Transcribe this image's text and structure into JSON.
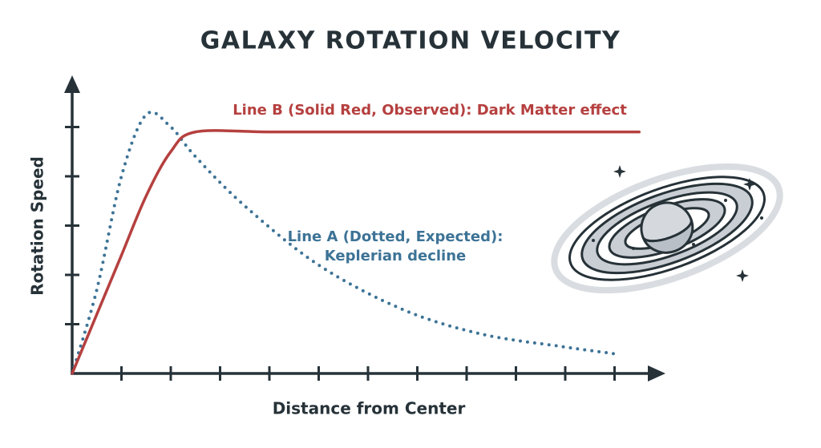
{
  "chart_data": {
    "type": "line",
    "title": "GALAXY ROTATION VELOCITY",
    "x_label": "Distance from Center",
    "y_label": "Rotation Speed",
    "xlim": [
      0,
      12
    ],
    "ylim": [
      0,
      6
    ],
    "xticks": [
      1,
      2,
      3,
      4,
      5,
      6,
      7,
      8,
      9,
      10,
      11
    ],
    "yticks": [
      1,
      2,
      3,
      4,
      5
    ],
    "tick_labels": false,
    "grid": false,
    "series": [
      {
        "name": "Line A (Dotted, Expected):",
        "note": "Keplerian decline",
        "color": "#3d7396",
        "style": "dotted",
        "x": [
          0,
          0.5,
          1,
          1.5,
          2,
          2.5,
          3.5,
          5,
          6.7,
          8.3,
          9.9,
          11
        ],
        "values": [
          0,
          1.7,
          4.0,
          5.25,
          5.0,
          4.4,
          3.4,
          2.2,
          1.3,
          0.8,
          0.55,
          0.4
        ]
      },
      {
        "name": "Line B (Solid Red, Observed): Dark Matter effect",
        "color": "#b5403f",
        "style": "solid",
        "x": [
          0,
          0.5,
          1,
          1.5,
          2,
          2.5,
          4,
          6,
          8,
          10,
          11.5
        ],
        "values": [
          0,
          1.2,
          2.4,
          3.6,
          4.5,
          4.9,
          4.9,
          4.9,
          4.9,
          4.9,
          4.9
        ]
      }
    ]
  }
}
